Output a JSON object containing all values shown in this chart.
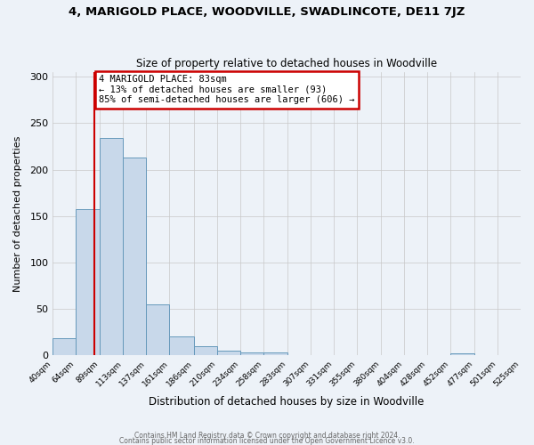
{
  "title1": "4, MARIGOLD PLACE, WOODVILLE, SWADLINCOTE, DE11 7JZ",
  "title2": "Size of property relative to detached houses in Woodville",
  "xlabel": "Distribution of detached houses by size in Woodville",
  "ylabel": "Number of detached properties",
  "bin_edges": [
    40,
    64,
    89,
    113,
    137,
    161,
    186,
    210,
    234,
    258,
    283,
    307,
    331,
    355,
    380,
    404,
    428,
    452,
    477,
    501,
    525
  ],
  "bar_heights": [
    18,
    157,
    234,
    213,
    55,
    20,
    10,
    5,
    3,
    3,
    0,
    0,
    0,
    0,
    0,
    0,
    0,
    2,
    0,
    0
  ],
  "bar_color": "#c8d8ea",
  "bar_edge_color": "#6699bb",
  "background_color": "#edf2f8",
  "grid_color": "#c8c8c8",
  "property_size": 83,
  "red_line_color": "#cc0000",
  "annotation_line1": "4 MARIGOLD PLACE: 83sqm",
  "annotation_line2": "← 13% of detached houses are smaller (93)",
  "annotation_line3": "85% of semi-detached houses are larger (606) →",
  "annotation_box_color": "#cc0000",
  "ylim": [
    0,
    305
  ],
  "yticks": [
    0,
    50,
    100,
    150,
    200,
    250,
    300
  ],
  "footer1": "Contains HM Land Registry data © Crown copyright and database right 2024.",
  "footer2": "Contains public sector information licensed under the Open Government Licence v3.0."
}
